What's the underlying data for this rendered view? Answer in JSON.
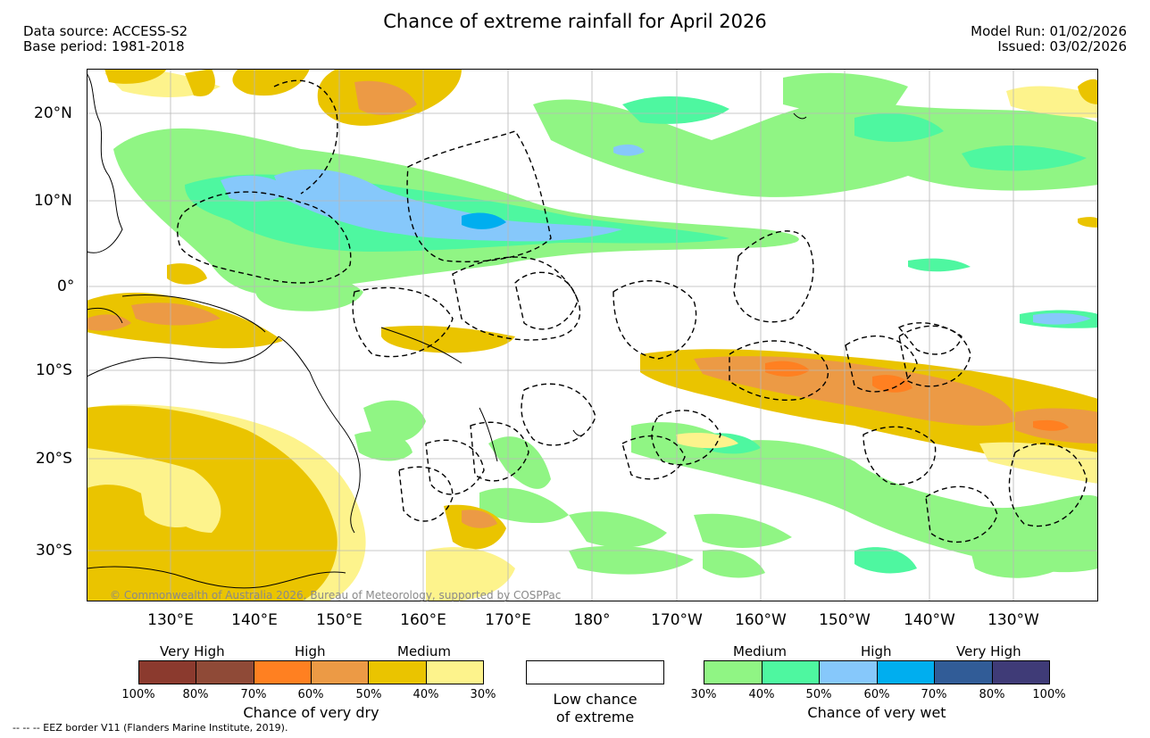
{
  "header": {
    "title": "Chance of extreme rainfall for April 2026",
    "data_source": "Data source: ACCESS-S2",
    "base_period": "Base period: 1981-2018",
    "model_run": "Model Run: 01/02/2026",
    "issued": "Issued: 03/02/2026"
  },
  "map": {
    "copyright": "© Commonwealth of Australia 2026, Bureau of Meteorology, supported by COSPPac",
    "lon_labels": [
      "130°E",
      "140°E",
      "150°E",
      "160°E",
      "170°E",
      "180°",
      "170°W",
      "160°W",
      "150°W",
      "140°W",
      "130°W"
    ],
    "lat_labels": [
      "20°N",
      "10°N",
      "0°",
      "10°S",
      "20°S",
      "30°S"
    ]
  },
  "legend_dry": {
    "categories": [
      "Very High",
      "High",
      "Medium"
    ],
    "colors": [
      "#8b3a2e",
      "#8f4a37",
      "#ff8021",
      "#ec9a45",
      "#eac400",
      "#fdf38c"
    ],
    "ticks": [
      "100%",
      "80%",
      "70%",
      "60%",
      "50%",
      "40%",
      "30%"
    ],
    "label": "Chance of very dry"
  },
  "legend_low": {
    "line1": "Low chance",
    "line2": "of extreme"
  },
  "legend_wet": {
    "categories": [
      "Medium",
      "High",
      "Very High"
    ],
    "colors": [
      "#90f584",
      "#4ef7a0",
      "#86c8fb",
      "#00aeef",
      "#315c97",
      "#3f3b77"
    ],
    "ticks": [
      "30%",
      "40%",
      "50%",
      "60%",
      "70%",
      "80%",
      "100%"
    ],
    "label": "Chance of very wet"
  },
  "footer": {
    "eez_note": "--  --  -- EEZ border V11 (Flanders Marine Institute, 2019)."
  }
}
